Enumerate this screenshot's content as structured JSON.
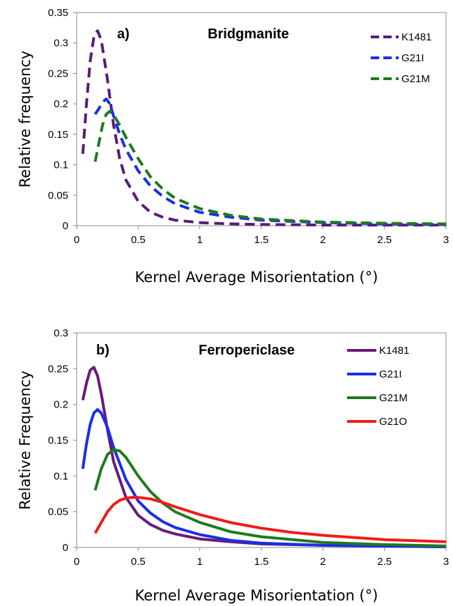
{
  "chart_data": [
    {
      "type": "line",
      "panel_label": "a)",
      "title": "Bridgmanite",
      "xlabel": "Kernel  Average Misorientation (°)",
      "ylabel": "Relative frequency",
      "xlim": [
        0,
        3
      ],
      "ylim": [
        0,
        0.35
      ],
      "x_ticks": [
        "0",
        "0.5",
        "1",
        "1.5",
        "2",
        "2.5",
        "3"
      ],
      "y_ticks": [
        "0",
        "0.05",
        "0.1",
        "0.15",
        "0.2",
        "0.25",
        "0.3",
        "0.35"
      ],
      "line_style": "dashed",
      "legend_position": "top-right",
      "grid": false,
      "series": [
        {
          "name": "K1481",
          "color": "#5a1a78",
          "x": [
            0.05,
            0.08,
            0.11,
            0.14,
            0.17,
            0.2,
            0.25,
            0.3,
            0.35,
            0.4,
            0.5,
            0.6,
            0.7,
            0.8,
            1.0,
            1.25,
            1.5,
            2.0,
            2.5,
            3.0
          ],
          "y": [
            0.118,
            0.2,
            0.27,
            0.31,
            0.32,
            0.305,
            0.24,
            0.165,
            0.11,
            0.075,
            0.04,
            0.022,
            0.014,
            0.009,
            0.005,
            0.003,
            0.002,
            0.001,
            0.001,
            0.001
          ]
        },
        {
          "name": "G21I",
          "color": "#1a2ee8",
          "x": [
            0.15,
            0.18,
            0.21,
            0.24,
            0.27,
            0.3,
            0.35,
            0.4,
            0.5,
            0.6,
            0.7,
            0.8,
            1.0,
            1.25,
            1.5,
            2.0,
            2.5,
            3.0
          ],
          "y": [
            0.183,
            0.192,
            0.203,
            0.208,
            0.2,
            0.18,
            0.15,
            0.125,
            0.09,
            0.065,
            0.048,
            0.036,
            0.022,
            0.014,
            0.009,
            0.005,
            0.003,
            0.002
          ]
        },
        {
          "name": "G21M",
          "color": "#1e7a1e",
          "x": [
            0.15,
            0.18,
            0.21,
            0.24,
            0.27,
            0.3,
            0.35,
            0.4,
            0.5,
            0.6,
            0.7,
            0.8,
            1.0,
            1.25,
            1.5,
            2.0,
            2.5,
            3.0
          ],
          "y": [
            0.105,
            0.135,
            0.165,
            0.183,
            0.188,
            0.182,
            0.165,
            0.145,
            0.11,
            0.08,
            0.06,
            0.045,
            0.028,
            0.017,
            0.011,
            0.006,
            0.004,
            0.003
          ]
        }
      ]
    },
    {
      "type": "line",
      "panel_label": "b)",
      "title": "Ferropericlase",
      "xlabel": "Kernel Average Misorientation (°)",
      "ylabel": "Relative Frequency",
      "xlim": [
        0,
        3
      ],
      "ylim": [
        0,
        0.3
      ],
      "x_ticks": [
        "0",
        "0.5",
        "1",
        "1.5",
        "2",
        "2.5",
        "3"
      ],
      "y_ticks": [
        "0",
        "0.05",
        "0.1",
        "0.15",
        "0.2",
        "0.25",
        "0.3"
      ],
      "line_style": "solid",
      "legend_position": "top-right",
      "grid": false,
      "series": [
        {
          "name": "K1481",
          "color": "#6a1a7a",
          "x": [
            0.05,
            0.08,
            0.11,
            0.14,
            0.17,
            0.2,
            0.25,
            0.3,
            0.4,
            0.5,
            0.6,
            0.7,
            0.8,
            1.0,
            1.25,
            1.5,
            2.0,
            2.5,
            3.0
          ],
          "y": [
            0.206,
            0.23,
            0.248,
            0.252,
            0.24,
            0.215,
            0.165,
            0.12,
            0.07,
            0.045,
            0.032,
            0.024,
            0.019,
            0.012,
            0.008,
            0.005,
            0.003,
            0.002,
            0.001
          ]
        },
        {
          "name": "G21I",
          "color": "#1a2ee8",
          "x": [
            0.05,
            0.08,
            0.11,
            0.14,
            0.17,
            0.2,
            0.25,
            0.3,
            0.4,
            0.5,
            0.6,
            0.7,
            0.8,
            1.0,
            1.25,
            1.5,
            2.0,
            2.5,
            3.0
          ],
          "y": [
            0.11,
            0.145,
            0.172,
            0.188,
            0.193,
            0.188,
            0.168,
            0.14,
            0.095,
            0.065,
            0.048,
            0.036,
            0.028,
            0.018,
            0.01,
            0.006,
            0.003,
            0.002,
            0.001
          ]
        },
        {
          "name": "G21M",
          "color": "#1e7a1e",
          "x": [
            0.15,
            0.2,
            0.25,
            0.3,
            0.35,
            0.4,
            0.5,
            0.6,
            0.7,
            0.8,
            1.0,
            1.25,
            1.5,
            2.0,
            2.5,
            3.0
          ],
          "y": [
            0.08,
            0.11,
            0.13,
            0.137,
            0.135,
            0.126,
            0.1,
            0.078,
            0.062,
            0.05,
            0.035,
            0.022,
            0.015,
            0.007,
            0.004,
            0.002
          ]
        },
        {
          "name": "G21O",
          "color": "#f21a1a",
          "x": [
            0.15,
            0.2,
            0.25,
            0.3,
            0.35,
            0.4,
            0.45,
            0.5,
            0.55,
            0.6,
            0.7,
            0.8,
            1.0,
            1.25,
            1.5,
            1.75,
            2.0,
            2.5,
            3.0
          ],
          "y": [
            0.02,
            0.035,
            0.05,
            0.06,
            0.066,
            0.069,
            0.07,
            0.07,
            0.069,
            0.068,
            0.063,
            0.057,
            0.046,
            0.035,
            0.027,
            0.021,
            0.017,
            0.011,
            0.008
          ]
        }
      ]
    }
  ]
}
